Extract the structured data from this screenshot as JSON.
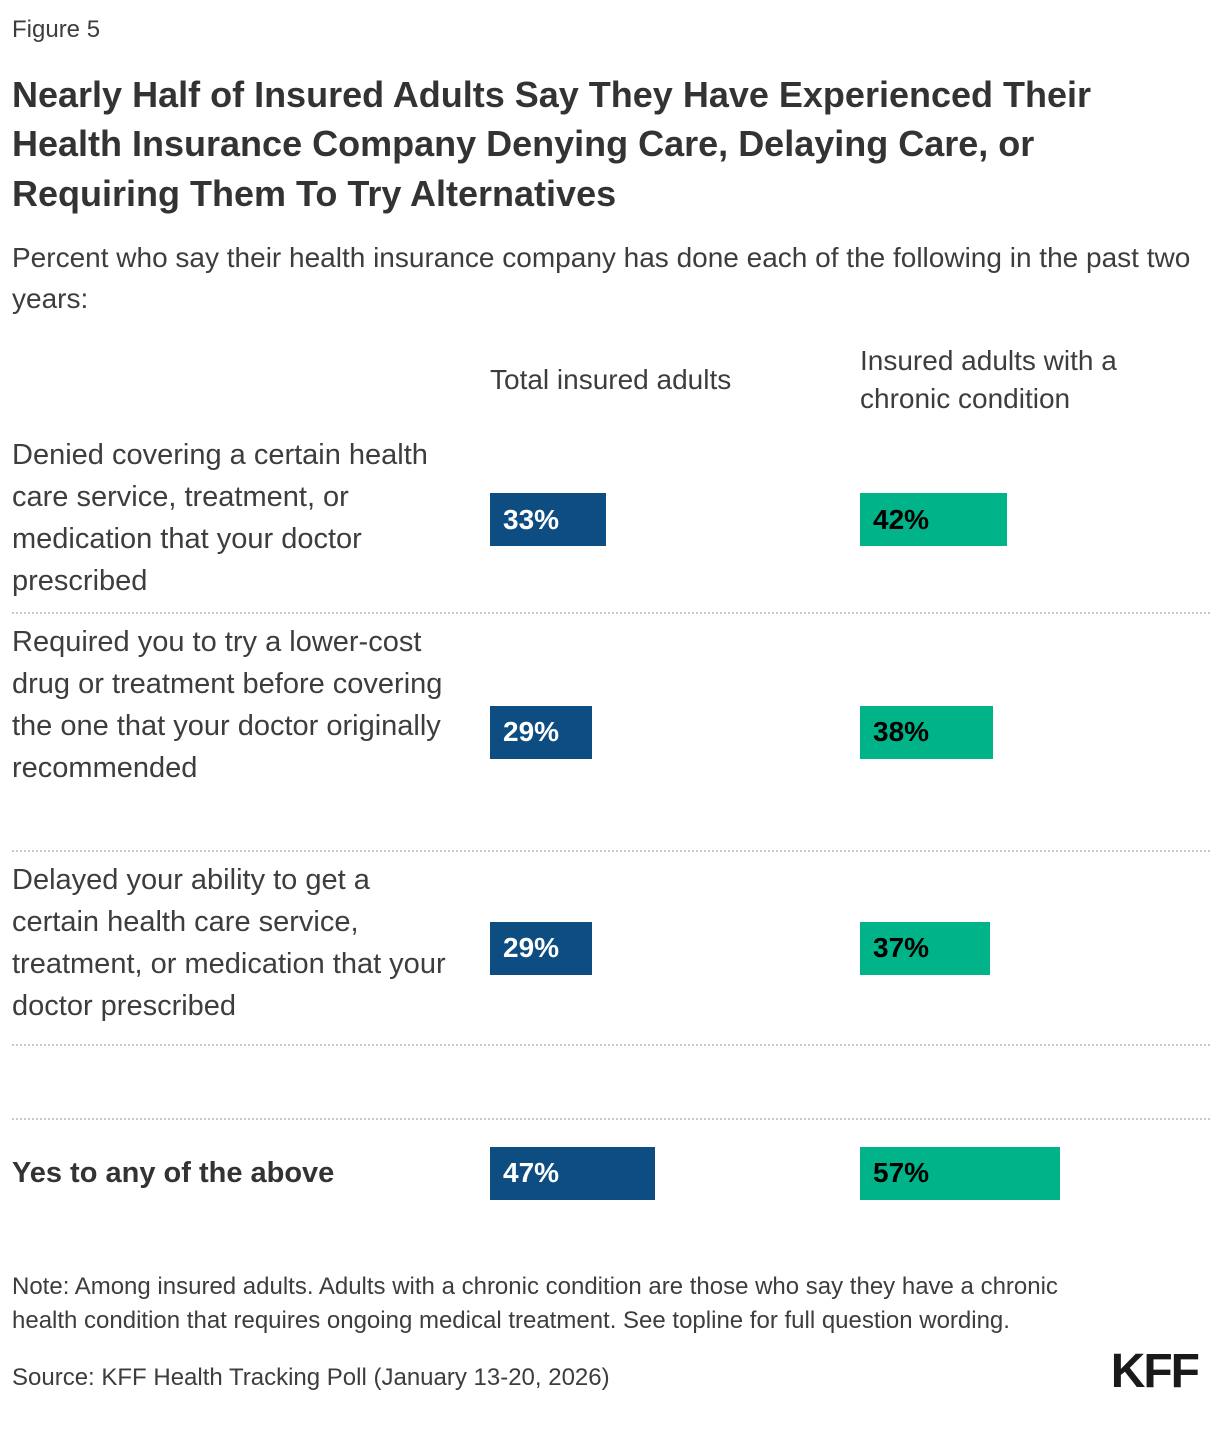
{
  "figure_label": "Figure 5",
  "title": "Nearly Half of Insured Adults Say They Have Experienced Their Health Insurance Company Denying Care, Delaying Care, or Requiring Them To Try Alternatives",
  "subtitle": "Percent who say their health insurance company has done each of the following in the past two years:",
  "note": "Note: Among insured adults. Adults with a chronic condition are those who say they have a chronic health condition that requires ongoing medical treatment. See topline for full question wording.",
  "source": "Source: KFF Health Tracking Poll (January 13-20, 2026)",
  "logo_text": "KFF",
  "colors": {
    "total_bar": "#0E4D82",
    "chronic_bar": "#00B388",
    "title_text": "#333333",
    "body_text": "#3D3D3D",
    "separator": "#C9C9C9"
  },
  "chart_data": {
    "type": "bar",
    "orientation": "horizontal",
    "title": "Nearly Half of Insured Adults Say They Have Experienced Their Health Insurance Company Denying Care, Delaying Care, or Requiring Them To Try Alternatives",
    "subtitle": "Percent who say their health insurance company has done each of the following in the past two years:",
    "categories": [
      "Denied covering a certain health care service, treatment, or medication that your doctor prescribed",
      "Required you to try a lower-cost drug or treatment before covering the one that your doctor originally recommended",
      "Delayed your ability to get a certain health care service, treatment, or medication that your doctor prescribed",
      "Yes to any of the above"
    ],
    "series": [
      {
        "name": "Total insured adults",
        "color": "#0E4D82",
        "label_color": "#FFFFFF",
        "values": [
          33,
          29,
          29,
          47
        ]
      },
      {
        "name": "Insured adults with a chronic condition",
        "color": "#00B388",
        "label_color": "#000000",
        "values": [
          42,
          38,
          37,
          57
        ]
      }
    ],
    "value_suffix": "%",
    "xlim": [
      0,
      100
    ],
    "grid": false,
    "legend_position": "column-headers",
    "data_labels": "inside-left"
  }
}
